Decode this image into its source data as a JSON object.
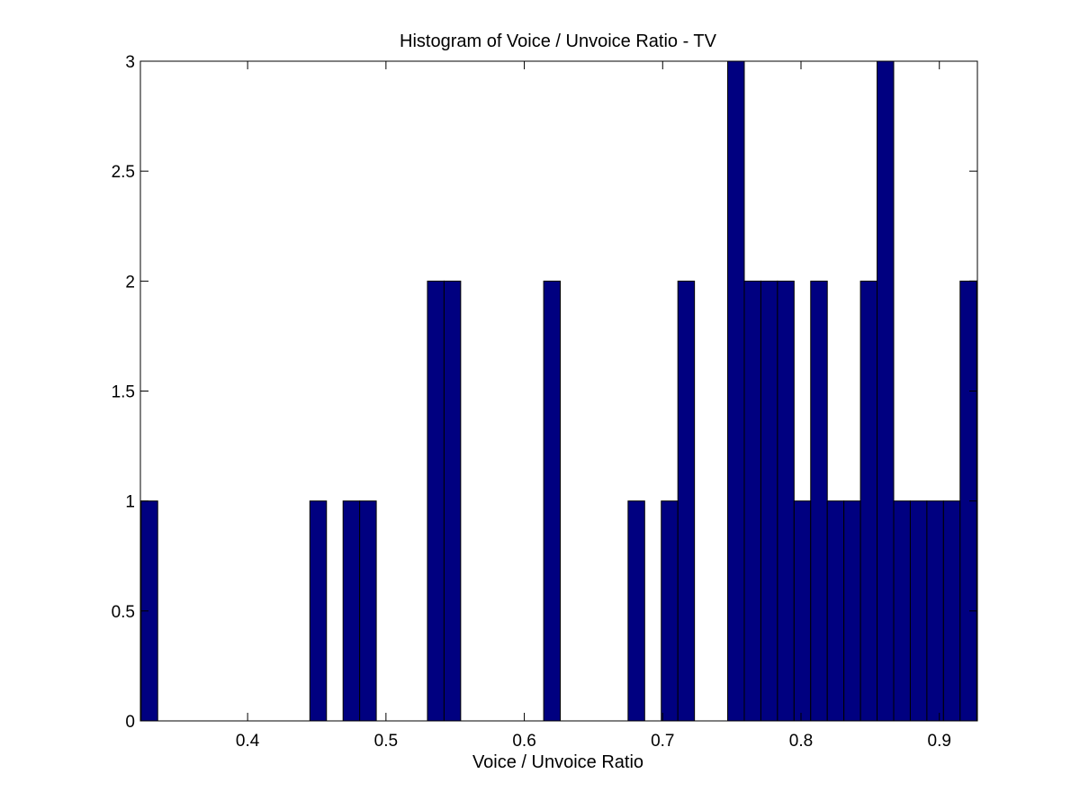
{
  "chart_data": {
    "type": "bar",
    "title": "Histogram of Voice / Unvoice Ratio - TV",
    "xlabel": "Voice / Unvoice Ratio",
    "ylabel": "",
    "xlim": [
      0.3225,
      0.9275
    ],
    "ylim": [
      0,
      3
    ],
    "grid": false,
    "legend": "none",
    "bar_color": "#000080",
    "bin_width": 0.012,
    "xticks": [
      0.4,
      0.5,
      0.6,
      0.7,
      0.8,
      0.9
    ],
    "xtick_labels": [
      "0.4",
      "0.5",
      "0.6",
      "0.7",
      "0.8",
      "0.9"
    ],
    "yticks": [
      0,
      0.5,
      1,
      1.5,
      2,
      2.5,
      3
    ],
    "ytick_labels": [
      "0",
      "0.5",
      "1",
      "1.5",
      "2",
      "2.5",
      "3"
    ],
    "bins": [
      {
        "x": 0.329,
        "count": 1
      },
      {
        "x": 0.451,
        "count": 1
      },
      {
        "x": 0.475,
        "count": 1
      },
      {
        "x": 0.487,
        "count": 1
      },
      {
        "x": 0.536,
        "count": 2
      },
      {
        "x": 0.548,
        "count": 2
      },
      {
        "x": 0.62,
        "count": 2
      },
      {
        "x": 0.681,
        "count": 1
      },
      {
        "x": 0.705,
        "count": 1
      },
      {
        "x": 0.717,
        "count": 2
      },
      {
        "x": 0.753,
        "count": 3
      },
      {
        "x": 0.765,
        "count": 2
      },
      {
        "x": 0.777,
        "count": 2
      },
      {
        "x": 0.789,
        "count": 2
      },
      {
        "x": 0.801,
        "count": 1
      },
      {
        "x": 0.813,
        "count": 2
      },
      {
        "x": 0.825,
        "count": 1
      },
      {
        "x": 0.837,
        "count": 1
      },
      {
        "x": 0.849,
        "count": 2
      },
      {
        "x": 0.861,
        "count": 3
      },
      {
        "x": 0.873,
        "count": 1
      },
      {
        "x": 0.885,
        "count": 1
      },
      {
        "x": 0.897,
        "count": 1
      },
      {
        "x": 0.909,
        "count": 1
      },
      {
        "x": 0.921,
        "count": 2
      }
    ]
  }
}
